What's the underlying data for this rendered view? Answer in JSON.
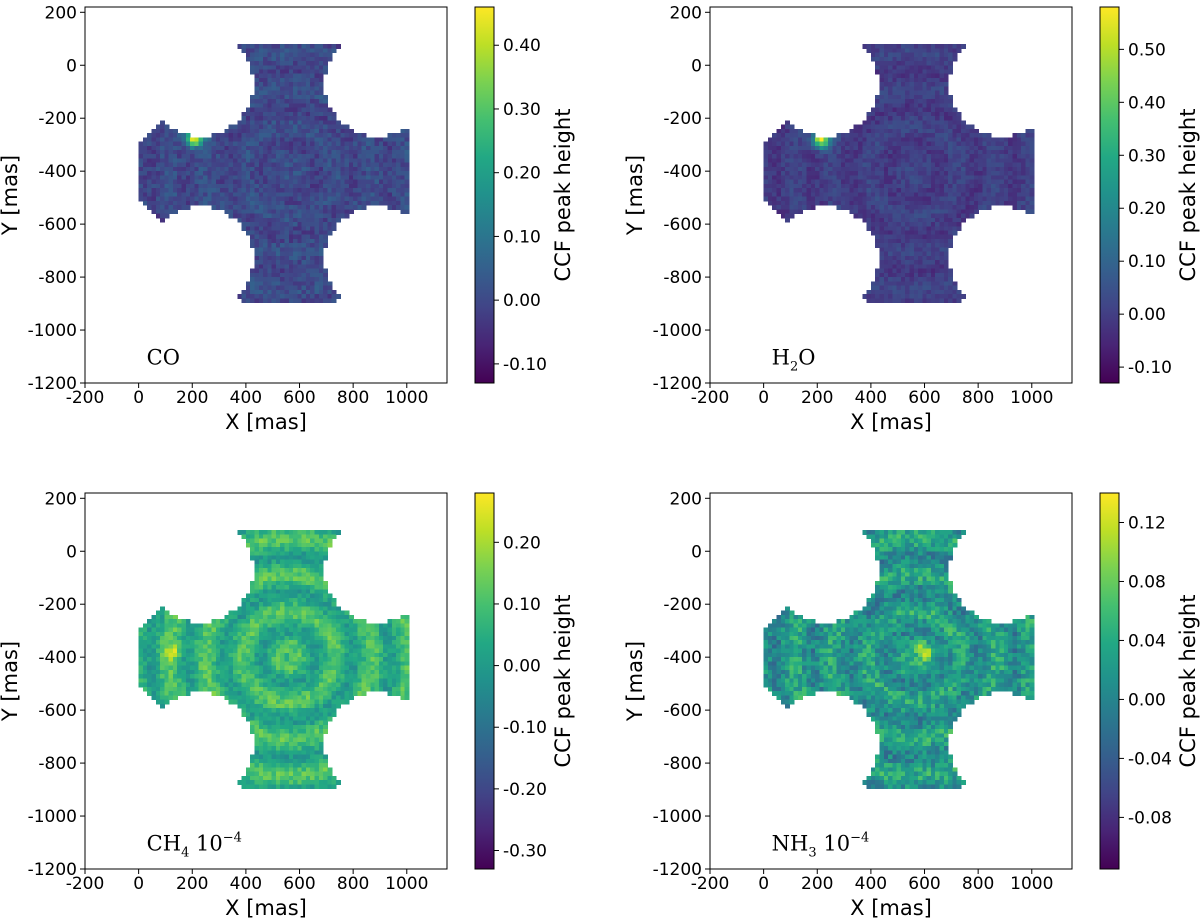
{
  "chart_data": [
    {
      "type": "heatmap",
      "annotation": {
        "text": "CO",
        "sub": "",
        "after": "",
        "sup": ""
      },
      "xlabel": "X [mas]",
      "ylabel": "Y [mas]",
      "xlim": [
        -200,
        1150
      ],
      "ylim": [
        -1200,
        220
      ],
      "xticks": [
        -200,
        0,
        200,
        400,
        600,
        800,
        1000
      ],
      "yticks": [
        200,
        0,
        -200,
        -400,
        -600,
        -800,
        -1000,
        -1200
      ],
      "colorbar": {
        "label": "CCF peak height",
        "min": -0.13,
        "max": 0.46,
        "ticks": [
          -0.1,
          0.0,
          0.1,
          0.2,
          0.3,
          0.4
        ],
        "tick_labels": [
          "-0.10",
          "0.00",
          "0.10",
          "0.20",
          "0.30",
          "0.40"
        ]
      },
      "pattern": {
        "mean": 0.0,
        "noise": 0.04,
        "blob": [
          210,
          -275,
          0.46
        ],
        "rings": 0.015,
        "seed": 11
      }
    },
    {
      "type": "heatmap",
      "annotation": {
        "text": "H",
        "sub": "2",
        "after": "O",
        "sup": ""
      },
      "xlabel": "X [mas]",
      "ylabel": "Y [mas]",
      "xlim": [
        -200,
        1150
      ],
      "ylim": [
        -1200,
        220
      ],
      "xticks": [
        -200,
        0,
        200,
        400,
        600,
        800,
        1000
      ],
      "yticks": [
        200,
        0,
        -200,
        -400,
        -600,
        -800,
        -1000,
        -1200
      ],
      "colorbar": {
        "label": "CCF peak height",
        "min": -0.13,
        "max": 0.58,
        "ticks": [
          -0.1,
          0.0,
          0.1,
          0.2,
          0.3,
          0.4,
          0.5
        ],
        "tick_labels": [
          "-0.10",
          "0.00",
          "0.10",
          "0.20",
          "0.30",
          "0.40",
          "0.50"
        ]
      },
      "pattern": {
        "mean": 0.0,
        "noise": 0.035,
        "blob": [
          215,
          -280,
          0.58
        ],
        "rings": 0.02,
        "seed": 23
      }
    },
    {
      "type": "heatmap",
      "annotation": {
        "text": "CH",
        "sub": "4",
        "after": " 10",
        "sup": "−4"
      },
      "xlabel": "X [mas]",
      "ylabel": "Y [mas]",
      "xlim": [
        -200,
        1150
      ],
      "ylim": [
        -1200,
        220
      ],
      "xticks": [
        -200,
        0,
        200,
        400,
        600,
        800,
        1000
      ],
      "yticks": [
        200,
        0,
        -200,
        -400,
        -600,
        -800,
        -1000,
        -1200
      ],
      "colorbar": {
        "label": "CCF peak height",
        "min": -0.33,
        "max": 0.28,
        "ticks": [
          -0.3,
          -0.2,
          -0.1,
          0.0,
          0.1,
          0.2
        ],
        "tick_labels": [
          "-0.30",
          "-0.20",
          "-0.10",
          "0.00",
          "0.10",
          "0.20"
        ]
      },
      "pattern": {
        "mean": 0.06,
        "noise": 0.05,
        "blob": [
          130,
          -380,
          0.2
        ],
        "rings": 0.06,
        "seed": 37
      }
    },
    {
      "type": "heatmap",
      "annotation": {
        "text": "NH",
        "sub": "3",
        "after": " 10",
        "sup": "−4"
      },
      "xlabel": "X [mas]",
      "ylabel": "Y [mas]",
      "xlim": [
        -200,
        1150
      ],
      "ylim": [
        -1200,
        220
      ],
      "xticks": [
        -200,
        0,
        200,
        400,
        600,
        800,
        1000
      ],
      "yticks": [
        200,
        0,
        -200,
        -400,
        -600,
        -800,
        -1000,
        -1200
      ],
      "colorbar": {
        "label": "CCF peak height",
        "min": -0.115,
        "max": 0.14,
        "ticks": [
          -0.08,
          -0.04,
          0.0,
          0.04,
          0.08,
          0.12
        ],
        "tick_labels": [
          "-0.08",
          "-0.04",
          "0.00",
          "0.04",
          "0.08",
          "0.12"
        ]
      },
      "pattern": {
        "mean": 0.02,
        "noise": 0.035,
        "blob": [
          600,
          -380,
          0.12
        ],
        "rings": 0.02,
        "seed": 53
      }
    }
  ]
}
